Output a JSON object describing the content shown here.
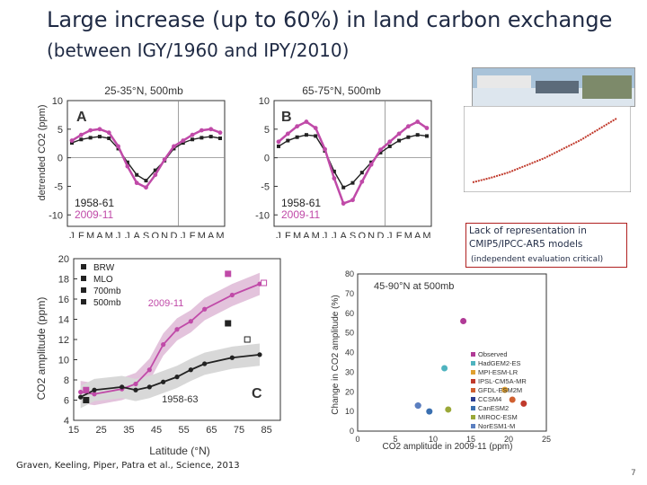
{
  "title": "Large increase (up to 60%) in land carbon exchange",
  "subtitle": "(between IGY/1960 and IPY/2010)",
  "note_lines": [
    "Lack of representation in",
    "CMIP5/IPCC-AR5 models"
  ],
  "note_sub": "(independent evaluation critical)",
  "citation": "Graven, Keeling, Piper, Patra et al., Science, 2013",
  "page_number": "7",
  "colors": {
    "recent": "#c04aa8",
    "old": "#222222",
    "title": "#1f2a44"
  },
  "chart_data": [
    {
      "type": "line",
      "panel": "A",
      "title": "25-35°N, 500mb",
      "ylabel": "detrended CO2 (ppm)",
      "ylim": [
        -12,
        10
      ],
      "yticks": [
        -10,
        -5,
        0,
        5,
        10
      ],
      "categories": [
        "J",
        "F",
        "M",
        "A",
        "M",
        "J",
        "J",
        "A",
        "S",
        "O",
        "N",
        "D",
        "J",
        "F",
        "M",
        "A",
        "M"
      ],
      "series": [
        {
          "name": "1958-61",
          "values": [
            2.6,
            3.2,
            3.5,
            3.7,
            3.4,
            1.6,
            -0.8,
            -3.0,
            -4.0,
            -2.2,
            -0.5,
            1.6,
            2.6,
            3.2,
            3.5,
            3.7,
            3.4
          ]
        },
        {
          "name": "2009-11",
          "values": [
            3.0,
            4.0,
            4.8,
            5.0,
            4.4,
            2.0,
            -1.5,
            -4.4,
            -5.2,
            -3.0,
            -0.3,
            2.0,
            3.0,
            4.0,
            4.8,
            5.0,
            4.4
          ]
        }
      ]
    },
    {
      "type": "line",
      "panel": "B",
      "title": "65-75°N, 500mb",
      "ylim": [
        -12,
        10
      ],
      "yticks": [
        -10,
        -5,
        0,
        5,
        10
      ],
      "categories": [
        "J",
        "F",
        "M",
        "A",
        "M",
        "J",
        "J",
        "A",
        "S",
        "O",
        "N",
        "D",
        "J",
        "F",
        "M",
        "A",
        "M"
      ],
      "series": [
        {
          "name": "1958-61",
          "values": [
            2.0,
            3.0,
            3.6,
            4.0,
            3.8,
            1.2,
            -2.4,
            -5.2,
            -4.4,
            -2.6,
            -0.8,
            0.9,
            2.0,
            3.0,
            3.6,
            4.0,
            3.8
          ]
        },
        {
          "name": "2009-11",
          "values": [
            2.8,
            4.2,
            5.5,
            6.3,
            5.2,
            1.5,
            -3.6,
            -8.0,
            -7.4,
            -4.2,
            -1.2,
            1.4,
            2.8,
            4.2,
            5.5,
            6.3,
            5.2
          ]
        }
      ]
    },
    {
      "type": "line",
      "panel": "C",
      "xlabel": "Latitude (°N)",
      "ylabel": "CO2 amplitude (ppm)",
      "xlim": [
        15,
        90
      ],
      "ylim": [
        4,
        20
      ],
      "xticks": [
        15,
        25,
        35,
        45,
        55,
        65,
        75,
        85
      ],
      "yticks": [
        4,
        6,
        8,
        10,
        12,
        14,
        16,
        18,
        20
      ],
      "legend": [
        "BRW",
        "MLO",
        "700mb",
        "500mb"
      ],
      "series": [
        {
          "name": "2009-11",
          "x": [
            17.5,
            22.5,
            32.5,
            37.5,
            42.5,
            47.5,
            52.5,
            57.5,
            62.5,
            72.5,
            82.5
          ],
          "values": [
            6.8,
            6.6,
            7.1,
            7.6,
            9.0,
            11.5,
            13.0,
            13.8,
            15.0,
            16.4,
            17.5
          ]
        },
        {
          "name": "1958-63",
          "x": [
            17.5,
            22.5,
            32.5,
            37.5,
            42.5,
            47.5,
            52.5,
            57.5,
            62.5,
            72.5,
            82.5
          ],
          "values": [
            6.3,
            7.0,
            7.3,
            7.0,
            7.3,
            7.8,
            8.3,
            9.0,
            9.6,
            10.2,
            10.5
          ]
        }
      ],
      "points": [
        {
          "label": "BRW 2009-11",
          "x": 71,
          "y": 18.5
        },
        {
          "label": "BRW 1958-63",
          "x": 71,
          "y": 13.6
        },
        {
          "label": "MLO 2009-11",
          "x": 19.5,
          "y": 7.0
        },
        {
          "label": "MLO 1958-63",
          "x": 19.5,
          "y": 6.0
        },
        {
          "label": "700mb 2009-11",
          "x": 84,
          "y": 17.6
        },
        {
          "label": "700mb 1958-63",
          "x": 78,
          "y": 12.0
        }
      ],
      "annotations": [
        "2009-11",
        "1958-63"
      ]
    },
    {
      "type": "scatter",
      "title": "45-90°N at 500mb",
      "xlabel": "CO2 amplitude in 2009-11 (ppm)",
      "ylabel": "Change in CO2 amplitude (%)",
      "xlim": [
        0,
        25
      ],
      "ylim": [
        0,
        80
      ],
      "xticks": [
        0,
        5,
        10,
        15,
        20,
        25
      ],
      "yticks": [
        0,
        10,
        20,
        30,
        40,
        50,
        60,
        70,
        80
      ],
      "points": [
        {
          "name": "Observed",
          "x": 14,
          "y": 56,
          "color": "#b03a96"
        },
        {
          "name": "HadGEM2-ES",
          "x": 11.5,
          "y": 32,
          "color": "#4fb3bf"
        },
        {
          "name": "MPI-ESM-LR",
          "x": 19.5,
          "y": 21,
          "color": "#e0a030"
        },
        {
          "name": "IPSL-CM5A-MR",
          "x": 22,
          "y": 14,
          "color": "#c0392b"
        },
        {
          "name": "GFDL-ESM2M",
          "x": 20.5,
          "y": 16,
          "color": "#d06030"
        },
        {
          "name": "CCSM4",
          "x": 8,
          "y": 13,
          "color": "#2c3e91"
        },
        {
          "name": "CanESM2",
          "x": 9.5,
          "y": 10,
          "color": "#3a6fb0"
        },
        {
          "name": "MIROC-ESM",
          "x": 12,
          "y": 11,
          "color": "#9aa838"
        },
        {
          "name": "NorESM1-M",
          "x": 8,
          "y": 13,
          "color": "#5b7fc0"
        }
      ]
    }
  ]
}
